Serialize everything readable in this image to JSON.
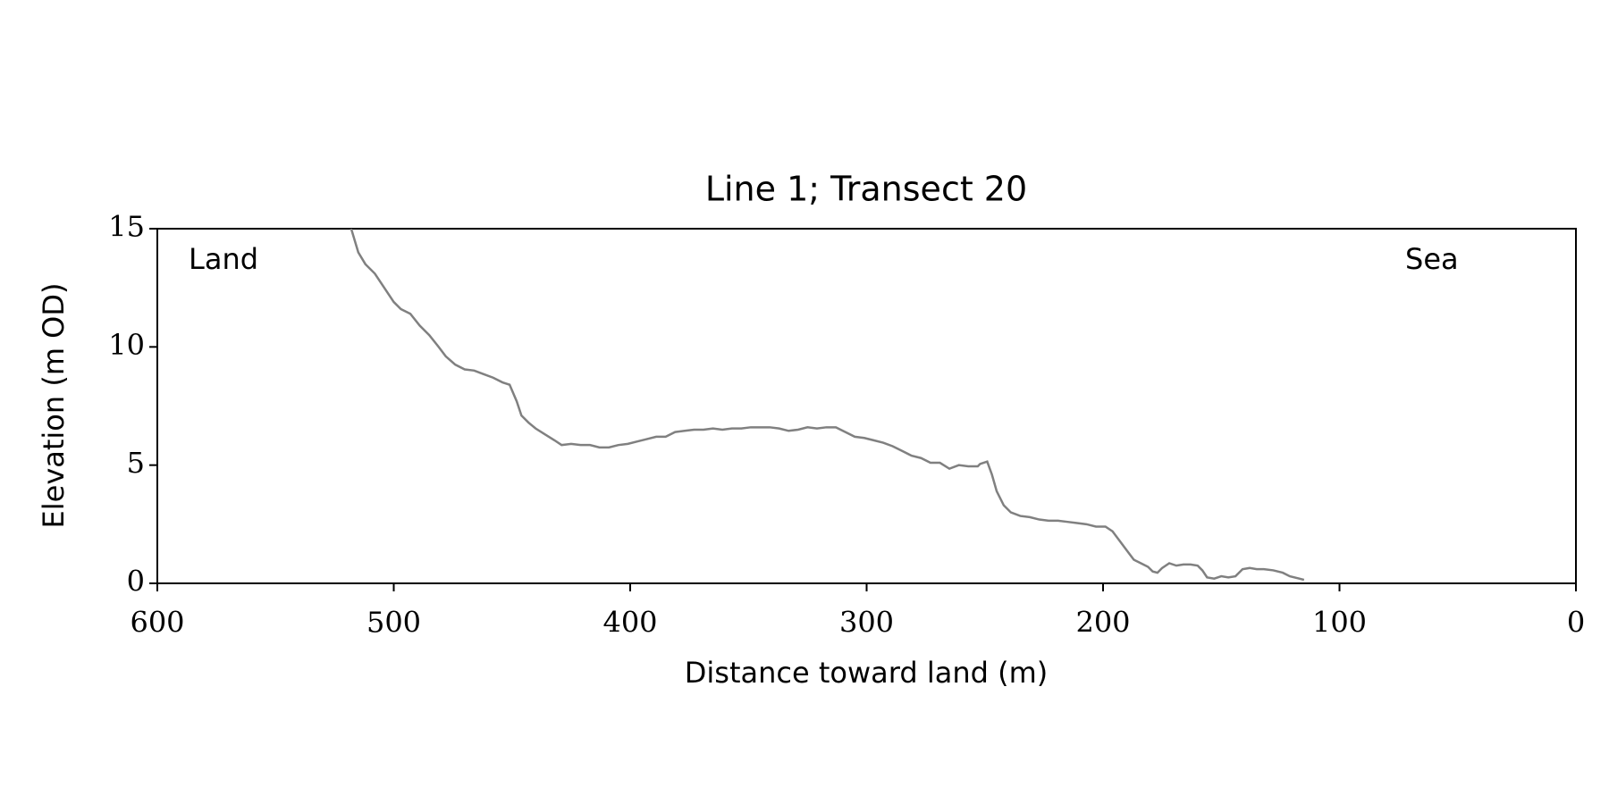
{
  "chart_data": {
    "type": "line",
    "title": "Line 1; Transect 20",
    "xlabel": "Distance toward land (m)",
    "ylabel": "Elevation (m OD)",
    "annotations": [
      "Land",
      "Sea"
    ],
    "x_reversed": true,
    "xlim": [
      600,
      0
    ],
    "xticks": [
      600,
      500,
      400,
      300,
      200,
      100,
      0
    ],
    "ylim": [
      0,
      15
    ],
    "yticks": [
      0,
      5,
      10,
      15
    ],
    "color": "#808080",
    "x": [
      518,
      515,
      512,
      508,
      504,
      500,
      497,
      493,
      489,
      485,
      481,
      478,
      474,
      470,
      466,
      462,
      458,
      454,
      451,
      448,
      446,
      443,
      440,
      436,
      432,
      429,
      425,
      421,
      417,
      413,
      409,
      405,
      401,
      397,
      393,
      389,
      385,
      381,
      377,
      373,
      369,
      365,
      361,
      357,
      353,
      349,
      345,
      341,
      337,
      333,
      329,
      325,
      321,
      317,
      313,
      309,
      305,
      301,
      297,
      293,
      289,
      285,
      281,
      277,
      273,
      269,
      265,
      261,
      257,
      253,
      252,
      249,
      247,
      245,
      242,
      239,
      235,
      231,
      227,
      223,
      219,
      215,
      211,
      207,
      203,
      199,
      196,
      193,
      190,
      187,
      184,
      181,
      179,
      177,
      175,
      172,
      169,
      166,
      163,
      160,
      158,
      156,
      153,
      150,
      147,
      144,
      141,
      138,
      135,
      132,
      128,
      124,
      121,
      117,
      115
    ],
    "values": [
      15.0,
      14.0,
      13.5,
      13.1,
      12.5,
      11.9,
      11.6,
      11.4,
      10.9,
      10.5,
      10.0,
      9.6,
      9.25,
      9.05,
      9.0,
      8.85,
      8.7,
      8.5,
      8.4,
      7.7,
      7.1,
      6.8,
      6.55,
      6.3,
      6.05,
      5.85,
      5.9,
      5.85,
      5.85,
      5.75,
      5.75,
      5.85,
      5.9,
      6.0,
      6.1,
      6.2,
      6.2,
      6.4,
      6.45,
      6.5,
      6.5,
      6.55,
      6.5,
      6.55,
      6.55,
      6.6,
      6.6,
      6.6,
      6.55,
      6.45,
      6.5,
      6.6,
      6.55,
      6.6,
      6.6,
      6.4,
      6.2,
      6.15,
      6.05,
      5.95,
      5.8,
      5.6,
      5.4,
      5.3,
      5.1,
      5.1,
      4.85,
      5.0,
      4.95,
      4.95,
      5.05,
      5.15,
      4.6,
      3.9,
      3.3,
      3.0,
      2.85,
      2.8,
      2.7,
      2.65,
      2.65,
      2.6,
      2.55,
      2.5,
      2.4,
      2.4,
      2.2,
      1.8,
      1.4,
      1.0,
      0.85,
      0.7,
      0.5,
      0.45,
      0.65,
      0.85,
      0.75,
      0.8,
      0.8,
      0.75,
      0.55,
      0.25,
      0.2,
      0.3,
      0.25,
      0.3,
      0.6,
      0.65,
      0.6,
      0.6,
      0.55,
      0.45,
      0.3,
      0.2,
      0.15
    ]
  }
}
